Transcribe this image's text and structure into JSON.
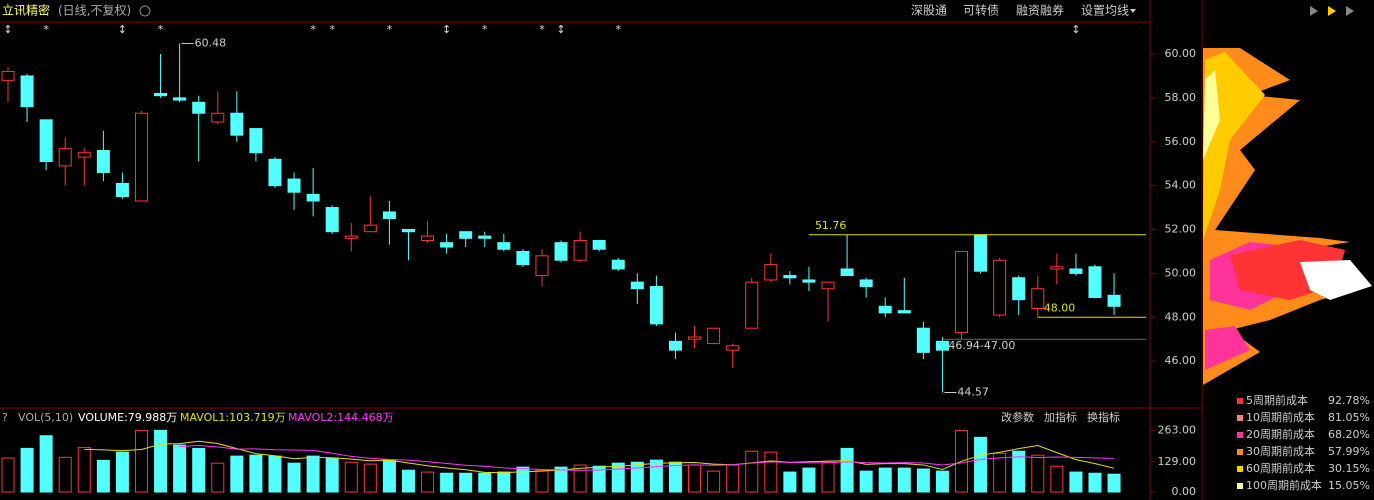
{
  "header": {
    "title": "立讯精密",
    "subtitle": "(日线,不复权)",
    "tabs": [
      "深股通",
      "可转债",
      "融资融券",
      "设置均线"
    ]
  },
  "chart_data": [
    {
      "type": "candlestick",
      "markers": [
        "↕",
        null,
        "*",
        null,
        null,
        null,
        "↕",
        null,
        "*",
        null,
        null,
        null,
        null,
        null,
        null,
        null,
        "*",
        "*",
        null,
        null,
        "*",
        null,
        null,
        "↕",
        null,
        "*",
        null,
        null,
        "*",
        "↕",
        null,
        null,
        "*",
        null,
        null,
        null,
        null,
        null,
        null,
        null,
        null,
        null,
        null,
        null,
        null,
        null,
        null,
        null,
        null,
        null,
        null,
        null,
        null,
        null,
        null,
        null,
        "↕",
        null,
        null
      ],
      "open": [
        58.8,
        59.0,
        57.0,
        54.9,
        55.3,
        55.6,
        54.1,
        53.3,
        58.2,
        58.0,
        57.8,
        56.9,
        57.3,
        56.6,
        55.2,
        54.3,
        53.6,
        53.0,
        51.6,
        51.9,
        52.8,
        52.0,
        51.5,
        51.4,
        51.9,
        51.7,
        51.4,
        51.0,
        49.9,
        51.4,
        50.6,
        51.5,
        50.6,
        49.6,
        49.4,
        46.9,
        47.0,
        46.8,
        46.5,
        47.5,
        49.7,
        49.9,
        49.7,
        49.3,
        50.2,
        49.7,
        48.5,
        48.3,
        47.5,
        46.9,
        47.3,
        51.76,
        48.1,
        49.8,
        48.4,
        50.2,
        50.2,
        50.3,
        49.0
      ],
      "high": [
        59.4,
        59.1,
        57.0,
        56.2,
        55.7,
        56.5,
        54.6,
        57.4,
        60.0,
        60.48,
        58.1,
        58.3,
        58.3,
        56.6,
        55.3,
        54.6,
        54.8,
        53.1,
        52.3,
        53.5,
        53.3,
        52.0,
        52.4,
        51.8,
        51.9,
        51.9,
        51.8,
        51.1,
        51.1,
        51.5,
        51.9,
        51.5,
        50.7,
        50.0,
        49.9,
        47.3,
        47.6,
        47.5,
        46.8,
        49.8,
        50.9,
        50.1,
        50.3,
        49.6,
        51.76,
        49.8,
        48.9,
        49.8,
        47.8,
        47.1,
        51.0,
        51.76,
        50.7,
        49.9,
        49.9,
        50.9,
        50.9,
        50.4,
        50.0
      ],
      "low": [
        57.8,
        56.9,
        54.7,
        54.0,
        54.0,
        54.2,
        53.4,
        53.3,
        58.0,
        57.8,
        55.1,
        56.8,
        56.0,
        55.1,
        53.9,
        52.9,
        52.6,
        51.8,
        51.0,
        51.9,
        51.3,
        50.6,
        51.4,
        50.9,
        51.2,
        51.2,
        51.0,
        50.3,
        49.4,
        50.5,
        50.5,
        51.0,
        50.1,
        48.6,
        47.6,
        46.1,
        46.6,
        46.8,
        45.7,
        47.5,
        49.6,
        49.5,
        49.2,
        47.8,
        49.9,
        48.9,
        48.0,
        48.2,
        46.1,
        44.57,
        47.0,
        50.0,
        48.0,
        48.1,
        48.0,
        49.5,
        49.9,
        48.9,
        48.1
      ],
      "close": [
        59.2,
        57.6,
        55.1,
        55.7,
        55.5,
        54.6,
        53.5,
        57.3,
        58.1,
        57.9,
        57.3,
        57.3,
        56.3,
        55.5,
        54.0,
        53.7,
        53.3,
        51.9,
        51.7,
        52.2,
        52.5,
        51.9,
        51.7,
        51.2,
        51.6,
        51.6,
        51.1,
        50.4,
        50.8,
        50.6,
        51.5,
        51.1,
        50.2,
        49.3,
        47.7,
        46.5,
        47.1,
        47.5,
        46.7,
        49.6,
        50.4,
        49.8,
        49.6,
        49.6,
        49.9,
        49.4,
        48.2,
        48.2,
        46.4,
        46.5,
        51.0,
        50.1,
        50.6,
        48.8,
        49.3,
        50.3,
        50.0,
        48.9,
        48.5
      ],
      "up_color": "#ff3232",
      "down_color": "#54ffff",
      "ylim": [
        44,
        61.55
      ],
      "yticks": [
        {
          "value": 46,
          "label": "46.00"
        },
        {
          "value": 48,
          "label": "48.00"
        },
        {
          "value": 50,
          "label": "50.00"
        },
        {
          "value": 52,
          "label": "52.00"
        },
        {
          "value": 54,
          "label": "54.00"
        },
        {
          "value": 56,
          "label": "56.00"
        },
        {
          "value": 58,
          "label": "58.00"
        },
        {
          "value": 60,
          "label": "60.00"
        }
      ],
      "pointers": [
        {
          "label": "60.48",
          "value": 60.48
        },
        {
          "label": "44.57",
          "value": 44.57
        }
      ],
      "levels": [
        {
          "label": "51.76",
          "value": 51.76,
          "color": "#e0e000"
        },
        {
          "label": "48.00",
          "value": 48,
          "color": "#e0e000"
        },
        {
          "label": "46.94-47.00",
          "value": 47,
          "color": "#666666"
        }
      ]
    },
    {
      "type": "volume",
      "title": "VOL(5,10)",
      "readouts": [
        "VOLUME:79.988万",
        "MAVOL1:103.719万",
        "MAVOL2:144.468万"
      ],
      "values": [
        145,
        186,
        240,
        148,
        190,
        135,
        170,
        263,
        263,
        200,
        186,
        123,
        153,
        157,
        153,
        123,
        153,
        144,
        127,
        119,
        136,
        93,
        85,
        80,
        80,
        80,
        85,
        106,
        93,
        106,
        115,
        110,
        123,
        127,
        136,
        127,
        115,
        89,
        115,
        174,
        170,
        85,
        102,
        127,
        186,
        89,
        102,
        102,
        98,
        89,
        263,
        233,
        165,
        174,
        157,
        110,
        85,
        80,
        76
      ],
      "ma_colors": [
        "#e0e000",
        "#ff33ff"
      ],
      "ylim": [
        0,
        290
      ],
      "yticks": [
        {
          "value": 0,
          "label": "0.00"
        },
        {
          "value": 129,
          "label": "129.00"
        },
        {
          "value": 263,
          "label": "263.00"
        }
      ],
      "buttons": [
        "改参数",
        "加指标",
        "换指标"
      ]
    }
  ],
  "chips_legend": [
    {
      "label": "5周期前成本",
      "value": "92.78%",
      "color": "#ff3333"
    },
    {
      "label": "10周期前成本",
      "value": "81.05%",
      "color": "#ff8080"
    },
    {
      "label": "20周期前成本",
      "value": "68.20%",
      "color": "#ff3399"
    },
    {
      "label": "30周期前成本",
      "value": "57.99%",
      "color": "#ff8c1a"
    },
    {
      "label": "60周期前成本",
      "value": "30.15%",
      "color": "#ffcc00"
    },
    {
      "label": "100周期前成本",
      "value": "15.05%",
      "color": "#ffff99"
    }
  ]
}
